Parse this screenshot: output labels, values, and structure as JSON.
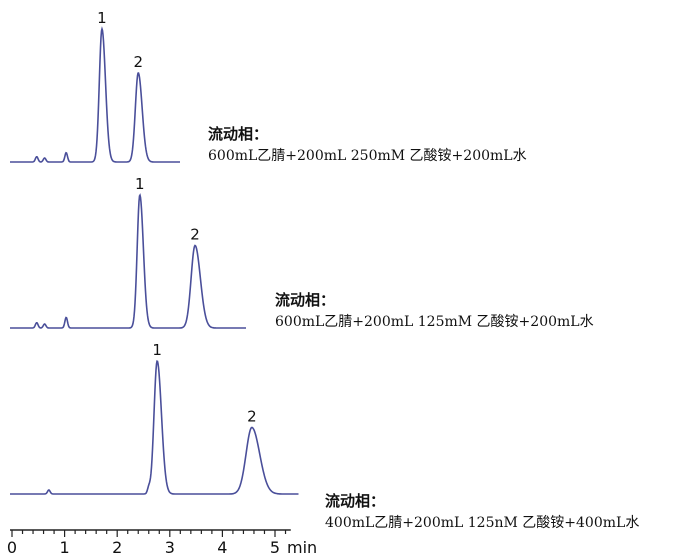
{
  "chart_data": {
    "type": "line",
    "xlabel": "min",
    "xlim": [
      0,
      5.4
    ],
    "xticks": [
      0,
      1,
      2,
      3,
      4,
      5
    ],
    "minor_tick_step": 0.2,
    "grid": false,
    "line_color": "#4a4f9a",
    "traces": [
      {
        "condition_label": "流动相：",
        "condition": "600mL乙腈+200mL 250mM 乙酸铵+200mL水",
        "x_range": [
          0,
          5.4
        ],
        "x_end": 3.2,
        "peaks": [
          {
            "label": "1",
            "time": 1.71,
            "height": 100,
            "width": 0.05
          },
          {
            "label": "2",
            "time": 2.4,
            "height": 67,
            "width": 0.055
          }
        ],
        "minor_peaks": [
          {
            "time": 0.47,
            "height": 4
          },
          {
            "time": 0.62,
            "height": 3
          },
          {
            "time": 1.03,
            "height": 7
          }
        ]
      },
      {
        "condition_label": "流动相：",
        "condition": "600mL乙腈+200mL 125mM 乙酸铵+200mL水",
        "x_end": 4.45,
        "peaks": [
          {
            "label": "1",
            "time": 2.43,
            "height": 100,
            "width": 0.05
          },
          {
            "label": "2",
            "time": 3.48,
            "height": 62,
            "width": 0.075
          }
        ],
        "minor_peaks": [
          {
            "time": 0.47,
            "height": 4
          },
          {
            "time": 0.62,
            "height": 3
          },
          {
            "time": 1.03,
            "height": 8
          }
        ]
      },
      {
        "condition_label": "流动相：",
        "condition": "400mL乙腈+200mL 125nM 乙酸铵+400mL水",
        "x_end": 5.45,
        "peaks": [
          {
            "label": "1",
            "time": 2.76,
            "height": 100,
            "width": 0.06
          },
          {
            "label": "2",
            "time": 4.56,
            "height": 50,
            "width": 0.11
          }
        ],
        "minor_peaks": [
          {
            "time": 0.7,
            "height": 3
          },
          {
            "time": 2.6,
            "height": 4
          }
        ]
      }
    ]
  }
}
